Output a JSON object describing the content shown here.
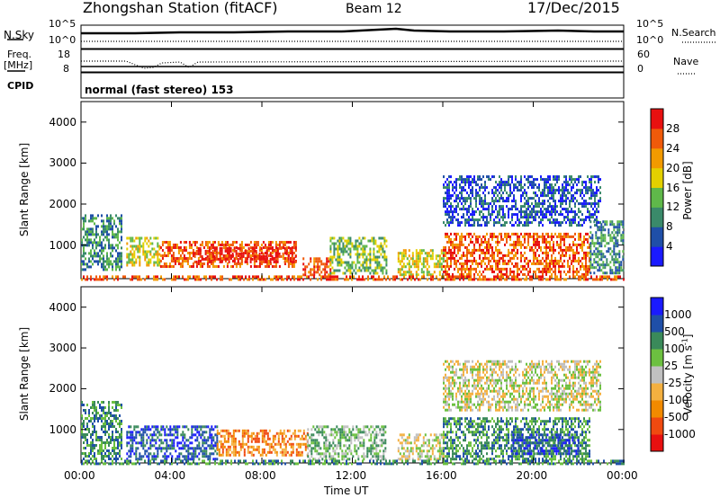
{
  "header": {
    "station": "Zhongshan Station (fitACF)",
    "beam": "Beam 12",
    "date": "17/Dec/2015"
  },
  "params_panel": {
    "nsky_label": "N.Sky",
    "nsearch_label": "N.Search",
    "freq_label_1": "Freq.",
    "freq_label_2": "[MHz]",
    "nave_label": "Nave",
    "cpid_label": "CPID",
    "cpid_value": "normal (fast stereo) 153",
    "nsky_ticks": [
      "10^5",
      "10^0"
    ],
    "nsearch_ticks": [
      "10^5",
      "10^0"
    ],
    "freq_ticks": [
      "18",
      "8"
    ],
    "nave_ticks": [
      "60",
      "0"
    ]
  },
  "chart_data": [
    {
      "type": "heatmap",
      "title": "",
      "xlabel": "",
      "ylabel": "Slant Range [km]",
      "xlim": [
        0,
        24
      ],
      "ylim": [
        180,
        4500
      ],
      "yticks": [
        "1000",
        "2000",
        "3000",
        "4000"
      ],
      "colorbar": {
        "label": "Power [dB]",
        "ticks": [
          "4",
          "8",
          "12",
          "16",
          "20",
          "24",
          "28"
        ],
        "colors": [
          "#1a1aff",
          "#1f4fa8",
          "#3a8a6a",
          "#5fb84a",
          "#e3d000",
          "#f29a00",
          "#f05a0a",
          "#e81010"
        ]
      },
      "echo_regions": [
        {
          "t0": 0.0,
          "t1": 1.8,
          "r0": 400,
          "r1": 1750,
          "level": 2
        },
        {
          "t0": 2.0,
          "t1": 3.5,
          "r0": 500,
          "r1": 1200,
          "level": 4
        },
        {
          "t0": 3.5,
          "t1": 9.5,
          "r0": 500,
          "r1": 1100,
          "level": 6
        },
        {
          "t0": 5.0,
          "t1": 9.5,
          "r0": 600,
          "r1": 950,
          "level": 7
        },
        {
          "t0": 9.8,
          "t1": 11.0,
          "r0": 300,
          "r1": 700,
          "level": 6
        },
        {
          "t0": 11.0,
          "t1": 13.5,
          "r0": 300,
          "r1": 1200,
          "level": 3
        },
        {
          "t0": 14.0,
          "t1": 16.0,
          "r0": 300,
          "r1": 900,
          "level": 4
        },
        {
          "t0": 16.0,
          "t1": 22.5,
          "r0": 300,
          "r1": 1300,
          "level": 6
        },
        {
          "t0": 22.5,
          "t1": 24.0,
          "r0": 300,
          "r1": 1600,
          "level": 2
        },
        {
          "t0": 16.0,
          "t1": 23.0,
          "r0": 1500,
          "r1": 2700,
          "level": 1
        },
        {
          "t0": 0.0,
          "t1": 24.0,
          "r0": 180,
          "r1": 260,
          "level": 6
        }
      ]
    },
    {
      "type": "heatmap",
      "title": "",
      "xlabel": "Time UT",
      "ylabel": "Slant Range [km]",
      "xlim": [
        0,
        24
      ],
      "ylim": [
        180,
        4500
      ],
      "yticks": [
        "1000",
        "2000",
        "3000",
        "4000"
      ],
      "xticks": [
        "00:00",
        "04:00",
        "08:00",
        "12:00",
        "16:00",
        "20:00",
        "00:00"
      ],
      "colorbar": {
        "label": "Velocity [m s",
        "label_sup": "-1",
        "label_end": "]",
        "ticks": [
          "-1000",
          "-500",
          "-100",
          "-25",
          "25",
          "100",
          "500",
          "1000"
        ],
        "colors": [
          "#e81010",
          "#f04a10",
          "#f28a00",
          "#f4b040",
          "#c0c0c0",
          "#6cc040",
          "#3a8a5a",
          "#1f4fa8",
          "#1a1aff"
        ]
      },
      "echo_regions": [
        {
          "t0": 0.0,
          "t1": 1.8,
          "r0": 300,
          "r1": 1700,
          "level": 6
        },
        {
          "t0": 2.0,
          "t1": 6.0,
          "r0": 300,
          "r1": 1100,
          "level": 7
        },
        {
          "t0": 6.0,
          "t1": 10.0,
          "r0": 400,
          "r1": 1000,
          "level": 2
        },
        {
          "t0": 10.0,
          "t1": 13.5,
          "r0": 300,
          "r1": 1100,
          "level": 5
        },
        {
          "t0": 14.0,
          "t1": 16.0,
          "r0": 300,
          "r1": 900,
          "level": 4
        },
        {
          "t0": 16.0,
          "t1": 22.5,
          "r0": 300,
          "r1": 1300,
          "level": 6
        },
        {
          "t0": 19.0,
          "t1": 22.0,
          "r0": 400,
          "r1": 900,
          "level": 7
        },
        {
          "t0": 16.0,
          "t1": 23.0,
          "r0": 1500,
          "r1": 2700,
          "level": 4
        },
        {
          "t0": 0.0,
          "t1": 24.0,
          "r0": 180,
          "r1": 260,
          "level": 6
        }
      ]
    }
  ]
}
